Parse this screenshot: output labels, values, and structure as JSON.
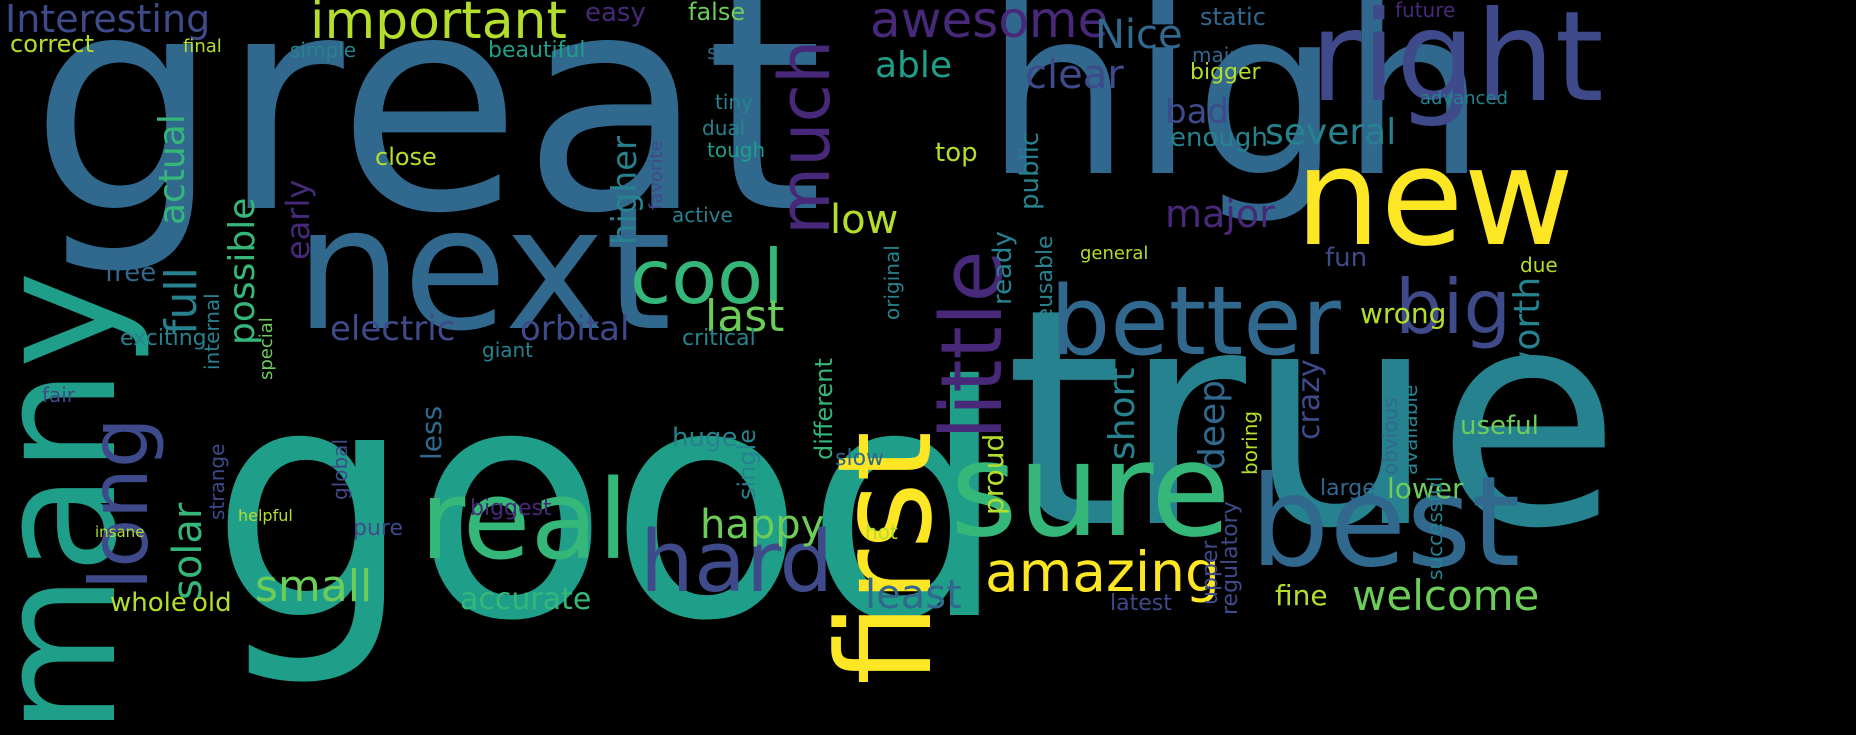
{
  "palette": {
    "background": "#000000",
    "words": [
      "#440154",
      "#482878",
      "#3e4a89",
      "#31688e",
      "#26828e",
      "#1f9e89",
      "#35b779",
      "#6dcd59",
      "#b4de2c",
      "#fde725"
    ]
  },
  "words": [
    {
      "text": "great",
      "color": "#31688e"
    },
    {
      "text": "good",
      "color": "#1f9e89"
    },
    {
      "text": "true",
      "color": "#26828e"
    },
    {
      "text": "high",
      "color": "#31688e"
    },
    {
      "text": "next",
      "color": "#31688e"
    },
    {
      "text": "many",
      "color": "#1f9e89"
    },
    {
      "text": "first",
      "color": "#fde725"
    },
    {
      "text": "new",
      "color": "#fde725"
    },
    {
      "text": "right",
      "color": "#3e4a89"
    },
    {
      "text": "sure",
      "color": "#35b779"
    },
    {
      "text": "best",
      "color": "#31688e"
    },
    {
      "text": "better",
      "color": "#31688e"
    },
    {
      "text": "real",
      "color": "#35b779"
    },
    {
      "text": "long",
      "color": "#3e4a89"
    },
    {
      "text": "little",
      "color": "#482878"
    },
    {
      "text": "cool",
      "color": "#35b779"
    },
    {
      "text": "hard",
      "color": "#3e4a89"
    },
    {
      "text": "amazing",
      "color": "#fde725"
    },
    {
      "text": "much",
      "color": "#482878"
    },
    {
      "text": "big",
      "color": "#3e4a89"
    },
    {
      "text": "important",
      "color": "#b4de2c"
    },
    {
      "text": "awesome",
      "color": "#482878"
    },
    {
      "text": "Interesting",
      "color": "#3e4a89"
    },
    {
      "text": "Nice",
      "color": "#31688e"
    },
    {
      "text": "correct",
      "color": "#b4de2c"
    },
    {
      "text": "easy",
      "color": "#482878"
    },
    {
      "text": "false",
      "color": "#6dcd59"
    },
    {
      "text": "static",
      "color": "#31688e"
    },
    {
      "text": "future",
      "color": "#482878"
    },
    {
      "text": "final",
      "color": "#b4de2c"
    },
    {
      "text": "simple",
      "color": "#26828e"
    },
    {
      "text": "beautiful",
      "color": "#1f9e89"
    },
    {
      "text": "safe",
      "color": "#31688e"
    },
    {
      "text": "main",
      "color": "#31688e"
    },
    {
      "text": "able",
      "color": "#1f9e89"
    },
    {
      "text": "clear",
      "color": "#3e4a89"
    },
    {
      "text": "bigger",
      "color": "#b4de2c"
    },
    {
      "text": "bad",
      "color": "#3e4a89"
    },
    {
      "text": "advanced",
      "color": "#26828e"
    },
    {
      "text": "several",
      "color": "#26828e"
    },
    {
      "text": "enough",
      "color": "#26828e"
    },
    {
      "text": "actual",
      "color": "#35b779"
    },
    {
      "text": "close",
      "color": "#b4de2c"
    },
    {
      "text": "top",
      "color": "#b4de2c"
    },
    {
      "text": "major",
      "color": "#482878"
    },
    {
      "text": "low",
      "color": "#b4de2c"
    },
    {
      "text": "free",
      "color": "#31688e"
    },
    {
      "text": "fun",
      "color": "#3e4a89"
    },
    {
      "text": "general",
      "color": "#b4de2c"
    },
    {
      "text": "electric",
      "color": "#3e4a89"
    },
    {
      "text": "orbital",
      "color": "#3e4a89"
    },
    {
      "text": "last",
      "color": "#6dcd59"
    },
    {
      "text": "exciting",
      "color": "#26828e"
    },
    {
      "text": "critical",
      "color": "#26828e"
    },
    {
      "text": "wrong",
      "color": "#b4de2c"
    },
    {
      "text": "worth",
      "color": "#26828e"
    },
    {
      "text": "giant",
      "color": "#26828e"
    },
    {
      "text": "deep",
      "color": "#31688e"
    },
    {
      "text": "happy",
      "color": "#6dcd59"
    },
    {
      "text": "small",
      "color": "#6dcd59"
    },
    {
      "text": "least",
      "color": "#31688e"
    },
    {
      "text": "welcome",
      "color": "#6dcd59"
    },
    {
      "text": "fine",
      "color": "#b4de2c"
    },
    {
      "text": "lower",
      "color": "#6dcd59"
    },
    {
      "text": "accurate",
      "color": "#35b779"
    },
    {
      "text": "whole",
      "color": "#b4de2c"
    },
    {
      "text": "old",
      "color": "#b4de2c"
    },
    {
      "text": "latest",
      "color": "#3e4a89"
    },
    {
      "text": "useful",
      "color": "#6dcd59"
    },
    {
      "text": "large",
      "color": "#31688e"
    },
    {
      "text": "biggest",
      "color": "#482878"
    },
    {
      "text": "hot",
      "color": "#b4de2c"
    },
    {
      "text": "pure",
      "color": "#3e4a89"
    },
    {
      "text": "huge",
      "color": "#26828e"
    },
    {
      "text": "slow",
      "color": "#31688e"
    },
    {
      "text": "fair",
      "color": "#3e4a89"
    },
    {
      "text": "helpful",
      "color": "#b4de2c"
    },
    {
      "text": "insane",
      "color": "#b4de2c"
    },
    {
      "text": "tough",
      "color": "#1f9e89"
    },
    {
      "text": "dual",
      "color": "#26828e"
    },
    {
      "text": "tiny",
      "color": "#26828e"
    },
    {
      "text": "active",
      "color": "#26828e"
    },
    {
      "text": "solar",
      "color": "#35b779"
    },
    {
      "text": "full",
      "color": "#26828e"
    },
    {
      "text": "possible",
      "color": "#35b779"
    },
    {
      "text": "early",
      "color": "#482878"
    },
    {
      "text": "higher",
      "color": "#26828e"
    },
    {
      "text": "short",
      "color": "#26828e"
    },
    {
      "text": "crazy",
      "color": "#3e4a89"
    },
    {
      "text": "ready",
      "color": "#26828e"
    },
    {
      "text": "public",
      "color": "#26828e"
    },
    {
      "text": "proud",
      "color": "#b4de2c"
    },
    {
      "text": "reusable",
      "color": "#26828e"
    },
    {
      "text": "different",
      "color": "#35b779"
    },
    {
      "text": "upper",
      "color": "#3e4a89"
    },
    {
      "text": "regulatory",
      "color": "#3e4a89"
    },
    {
      "text": "boring",
      "color": "#b4de2c"
    },
    {
      "text": "less",
      "color": "#31688e"
    },
    {
      "text": "single",
      "color": "#26828e"
    },
    {
      "text": "internal",
      "color": "#26828e"
    },
    {
      "text": "special",
      "color": "#6dcd59"
    },
    {
      "text": "favorite",
      "color": "#3e4a89"
    },
    {
      "text": "original",
      "color": "#26828e"
    },
    {
      "text": "strange",
      "color": "#3e4a89"
    },
    {
      "text": "global",
      "color": "#3e4a89"
    },
    {
      "text": "obvious",
      "color": "#31688e"
    },
    {
      "text": "available",
      "color": "#26828e"
    },
    {
      "text": "successful",
      "color": "#26828e"
    },
    {
      "text": "due",
      "color": "#b4de2c"
    }
  ]
}
